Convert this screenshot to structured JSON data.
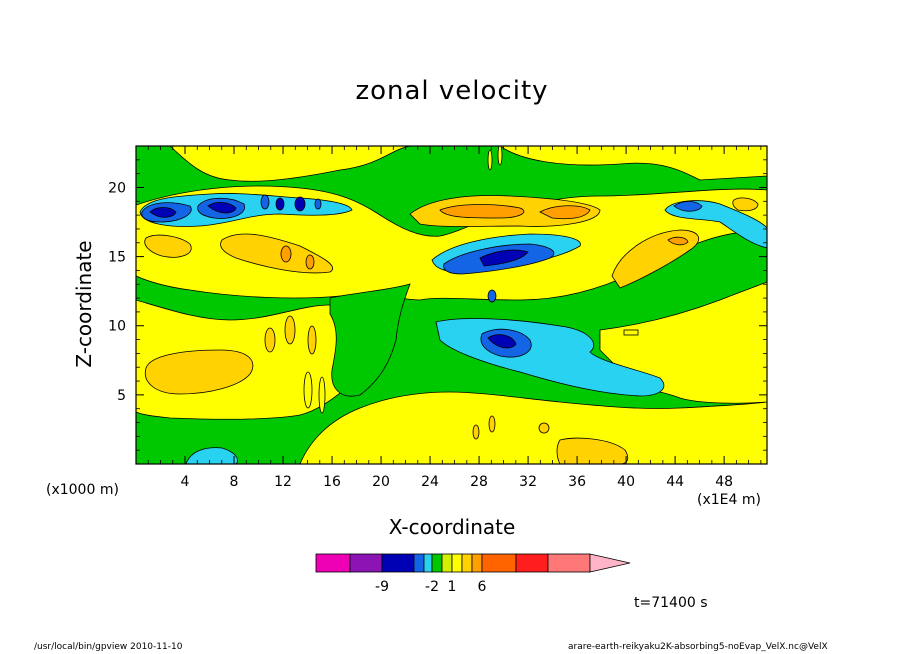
{
  "chart_data": {
    "type": "heatmap",
    "title": "zonal velocity",
    "xlabel": "X-coordinate",
    "ylabel": "Z-coordinate",
    "x_unit_left": "(x1000 m)",
    "x_unit_right": "(x1E4 m)",
    "xlim": [
      0,
      51.5
    ],
    "ylim": [
      0,
      23
    ],
    "x_ticks": [
      4,
      8,
      12,
      16,
      20,
      24,
      28,
      32,
      36,
      40,
      44,
      48
    ],
    "y_ticks": [
      5,
      10,
      15,
      20
    ],
    "colorbar": {
      "colors": [
        "#ee00b4",
        "#8c14b4",
        "#0000b4",
        "#1464e6",
        "#28d2f0",
        "#00c800",
        "#d2f000",
        "#ffff00",
        "#ffd200",
        "#ffa000",
        "#ff6400",
        "#ff1e1e",
        "#ff7878",
        "#ffb4c8"
      ],
      "labels": [
        "-9",
        "-2",
        "1",
        "6"
      ],
      "label_boundaries": [
        2,
        5,
        7,
        10
      ]
    },
    "features": [
      {
        "x": 3,
        "z": 6.5,
        "u": 3
      },
      {
        "x": 6,
        "z": 7,
        "u": 3
      },
      {
        "x": 2,
        "z": 18.3,
        "u": -7
      },
      {
        "x": 7,
        "z": 18.4,
        "u": -7
      },
      {
        "x": 28,
        "z": 18.5,
        "u": 5
      },
      {
        "x": 33,
        "z": 18.3,
        "u": 5
      },
      {
        "x": 29,
        "z": 15.5,
        "u": -7
      },
      {
        "x": 30,
        "z": 8.5,
        "u": -6
      },
      {
        "x": 44,
        "z": 16,
        "u": 4
      },
      {
        "x": 45,
        "z": 18.5,
        "u": -4
      },
      {
        "x": 5,
        "z": 1,
        "u": -2
      },
      {
        "x": 36,
        "z": 1,
        "u": 3
      }
    ]
  },
  "time_label": "t=71400 s",
  "footer_left": "/usr/local/bin/gpview  2010-11-10",
  "footer_right": "arare-earth-reikyaku2K-absorbing5-noEvap_VelX.nc@VelX"
}
